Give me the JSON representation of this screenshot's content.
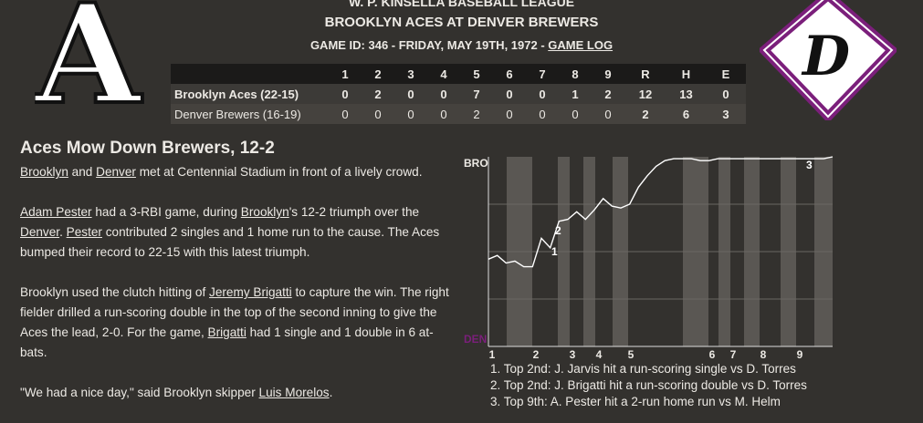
{
  "header": {
    "league": "W. P. KINSELLA BASEBALL LEAGUE",
    "matchup": "BROOKLYN ACES AT DENVER BREWERS",
    "game_info": "GAME ID: 346 - FRIDAY, MAY 19TH, 1972 - ",
    "game_log_link": "GAME LOG",
    "away_logo": "A",
    "home_logo": "D"
  },
  "linescore": {
    "columns": [
      "1",
      "2",
      "3",
      "4",
      "5",
      "6",
      "7",
      "8",
      "9",
      "R",
      "H",
      "E"
    ],
    "rows": [
      {
        "team": "Brooklyn Aces (22-15)",
        "scores": [
          0,
          2,
          0,
          0,
          7,
          0,
          0,
          1,
          2,
          12,
          13,
          0
        ]
      },
      {
        "team": "Denver Brewers (16-19)",
        "scores": [
          0,
          0,
          0,
          0,
          2,
          0,
          0,
          0,
          0,
          2,
          6,
          3
        ]
      }
    ]
  },
  "article": {
    "headline": "Aces Mow Down Brewers, 12-2",
    "paragraphs": [
      [
        {
          "link": "Brooklyn"
        },
        " and ",
        {
          "link": "Denver"
        },
        " met at Centennial Stadium in front of a lively crowd."
      ],
      [
        {
          "link": "Adam Pester"
        },
        " had a 3-RBI game, during ",
        {
          "link": "Brooklyn"
        },
        "'s 12-2 triumph over the ",
        {
          "link": "Denver"
        },
        ". ",
        {
          "link": "Pester"
        },
        " contributed 2 singles and 1 home run to the cause. The Aces bumped their record to 22-15 with this latest triumph."
      ],
      [
        "Brooklyn used the clutch hitting of ",
        {
          "link": "Jeremy Brigatti"
        },
        " to capture the win. The right fielder drilled a run-scoring double in the top of the second inning to give the Aces the lead, 2-0. For the game, ",
        {
          "link": "Brigatti"
        },
        " had 1 single and 1 double in 6 at-bats."
      ],
      [
        "\"We had a nice day,\" said Brooklyn skipper ",
        {
          "link": "Luis Morelos"
        },
        "."
      ]
    ]
  },
  "win_probability": {
    "top_label": "BRO",
    "bottom_label": "DEN",
    "ylim": [
      0,
      1
    ],
    "values": [
      0.46,
      0.48,
      0.44,
      0.45,
      0.42,
      0.42,
      0.57,
      0.52,
      0.66,
      0.67,
      0.71,
      0.67,
      0.72,
      0.78,
      0.74,
      0.73,
      0.75,
      0.84,
      0.9,
      0.95,
      0.98,
      0.99,
      0.99,
      0.99,
      0.98,
      0.98,
      0.99,
      0.99,
      0.99,
      0.99,
      0.99,
      0.99,
      0.99,
      0.99,
      0.99,
      0.99,
      0.99,
      0.99,
      0.99,
      1.0
    ],
    "innings": [
      "1",
      "2",
      "3",
      "4",
      "5",
      "6",
      "7",
      "8",
      "9"
    ],
    "markers": [
      "1",
      "2",
      "3"
    ],
    "notes": [
      "1. Top 2nd: J. Jarvis hit a run-scoring single vs D. Torres",
      "2. Top 2nd: J. Brigatti hit a run-scoring double vs D. Torres",
      "3. Top 9th: A. Pester hit a 2-run home run vs M. Helm"
    ]
  }
}
